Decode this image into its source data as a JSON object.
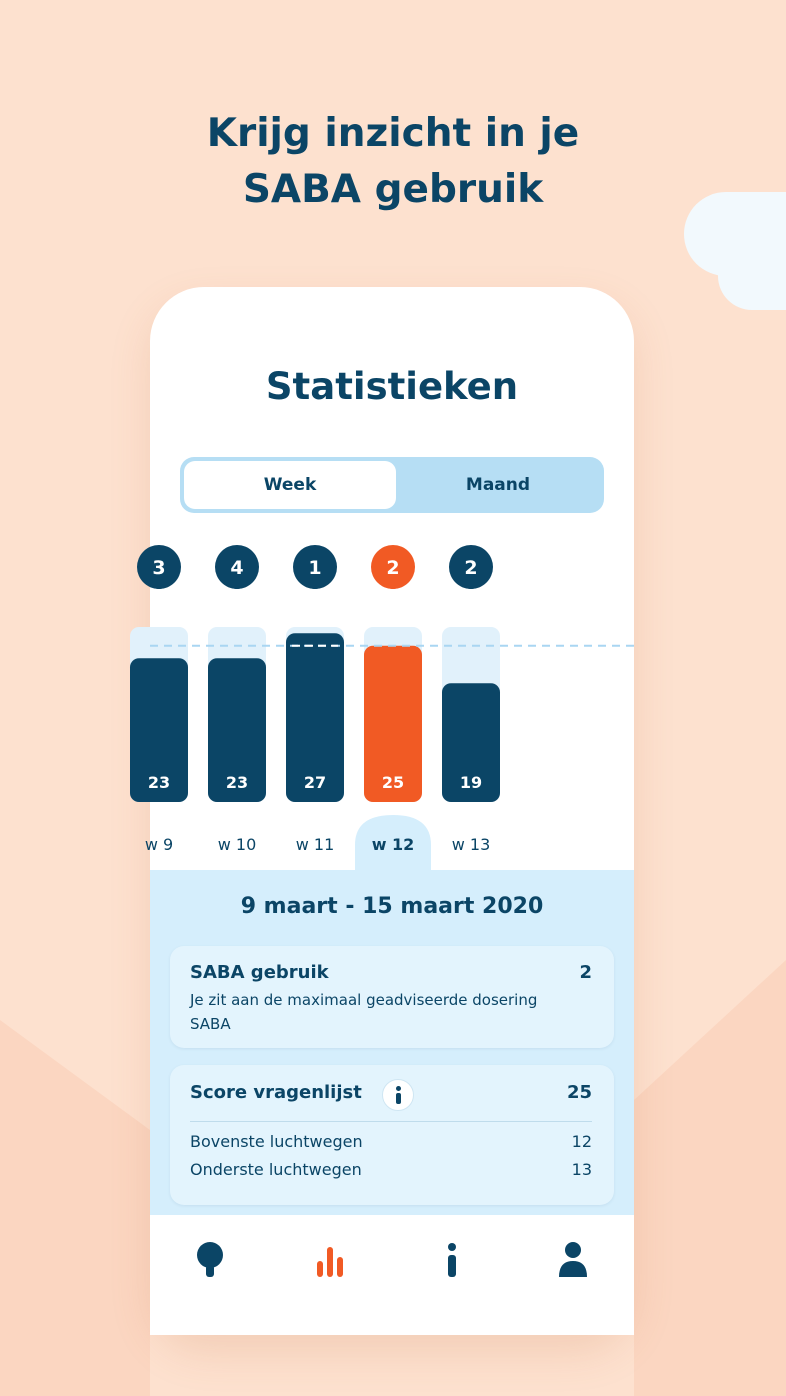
{
  "promo": {
    "title_line1": "Krijg inzicht in je",
    "title_line2": "SABA gebruik"
  },
  "screen": {
    "title": "Statistieken"
  },
  "segment": {
    "week_label": "Week",
    "month_label": "Maand",
    "selected": "Week"
  },
  "chart_data": {
    "type": "bar",
    "categories": [
      "w 9",
      "w 10",
      "w 11",
      "w 12",
      "w 13"
    ],
    "values": [
      23,
      23,
      27,
      25,
      19
    ],
    "saba_counts": [
      3,
      4,
      1,
      2,
      2
    ],
    "selected": "w 12",
    "ylim": [
      0,
      28
    ],
    "max_reference": 25,
    "colors": {
      "bar": "#0b4566",
      "selected_bar": "#f15a24",
      "track": "#e1f1fb",
      "reference_line": "#a9d6f2"
    }
  },
  "detail": {
    "period": "9 maart - 15 maart 2020",
    "saba": {
      "title": "SABA gebruik",
      "value": "2",
      "description": "Je zit aan de maximaal geadviseerde dosering SABA"
    },
    "score": {
      "title": "Score vragenlijst",
      "value": "25",
      "info_icon": "info-icon",
      "rows": [
        {
          "label": "Bovenste luchtwegen",
          "value": "12"
        },
        {
          "label": "Onderste luchtwegen",
          "value": "13"
        }
      ]
    }
  },
  "nav": {
    "items": [
      {
        "icon": "inhaler-pin-icon",
        "active": false
      },
      {
        "icon": "bar-chart-icon",
        "active": true
      },
      {
        "icon": "info-icon",
        "active": false
      },
      {
        "icon": "user-icon",
        "active": false
      }
    ],
    "colors": {
      "active": "#f15a24",
      "inactive": "#0b4566"
    }
  }
}
